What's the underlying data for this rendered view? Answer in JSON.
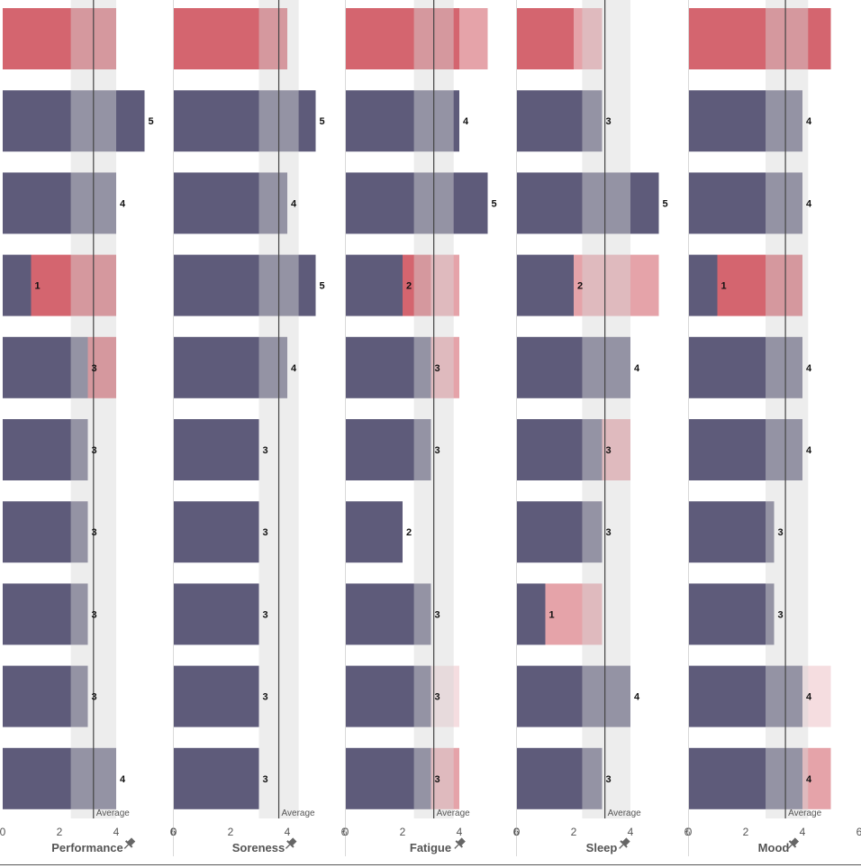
{
  "colors": {
    "bar": "#5e5b7a",
    "alert_strong": "#d4656f",
    "alert_light": "#e5a3a9",
    "alert_faint": "#f5dde0",
    "avg_band": "#d6d6d6",
    "avg_line": "#444444",
    "separator": "#d9d9d9"
  },
  "average_label": "Average",
  "pin_icon": "pin-icon",
  "chart_data": {
    "type": "bar",
    "orientation": "horizontal",
    "xlim": [
      0,
      6
    ],
    "x_ticks": [
      "0",
      "2",
      "4",
      "6"
    ],
    "panels": [
      {
        "name": "Performance",
        "average": 3.2,
        "band": [
          2.4,
          4.0
        ],
        "rows": [
          {
            "value": null,
            "alert_to": 4,
            "alert": "strong"
          },
          {
            "value": 5,
            "label": "5"
          },
          {
            "value": 4,
            "label": "4"
          },
          {
            "value": 1,
            "label": "1",
            "alert_to": 4,
            "alert": "strong"
          },
          {
            "value": 3,
            "label": "3",
            "alert_to": 4,
            "alert": "strong"
          },
          {
            "value": 3,
            "label": "3"
          },
          {
            "value": 3,
            "label": "3"
          },
          {
            "value": 3,
            "label": "3"
          },
          {
            "value": 3,
            "label": "3"
          },
          {
            "value": 4,
            "label": "4"
          }
        ]
      },
      {
        "name": "Soreness",
        "average": 3.7,
        "band": [
          3.0,
          4.4
        ],
        "rows": [
          {
            "value": null,
            "alert_to": 4,
            "alert": "strong"
          },
          {
            "value": 5,
            "label": "5"
          },
          {
            "value": 4,
            "label": "4"
          },
          {
            "value": 5,
            "label": "5"
          },
          {
            "value": 4,
            "label": "4"
          },
          {
            "value": 3,
            "label": "3"
          },
          {
            "value": 3,
            "label": "3"
          },
          {
            "value": 3,
            "label": "3"
          },
          {
            "value": 3,
            "label": "3"
          },
          {
            "value": 3,
            "label": "3"
          }
        ]
      },
      {
        "name": "Fatigue",
        "average": 3.1,
        "band": [
          2.4,
          3.8
        ],
        "rows": [
          {
            "value": null,
            "alert_to": 4,
            "alert": "strong",
            "light_to": 5
          },
          {
            "value": 4,
            "label": "4"
          },
          {
            "value": 5,
            "label": "5"
          },
          {
            "value": 2,
            "label": "2",
            "alert_to": 3,
            "alert": "strong",
            "light_to": 4
          },
          {
            "value": 3,
            "label": "3",
            "alert_to": 4,
            "alert": "light"
          },
          {
            "value": 3,
            "label": "3"
          },
          {
            "value": 2,
            "label": "2"
          },
          {
            "value": 3,
            "label": "3"
          },
          {
            "value": 3,
            "label": "3",
            "alert_to": 4,
            "alert": "faint"
          },
          {
            "value": 3,
            "label": "3",
            "alert_to": 4,
            "alert": "light"
          }
        ]
      },
      {
        "name": "Sleep",
        "average": 3.1,
        "band": [
          2.3,
          4.0
        ],
        "rows": [
          {
            "value": null,
            "alert_to": 2,
            "alert": "strong",
            "light_to": 3
          },
          {
            "value": 3,
            "label": "3"
          },
          {
            "value": 5,
            "label": "5"
          },
          {
            "value": 2,
            "label": "2",
            "alert_to": 5,
            "alert": "light"
          },
          {
            "value": 4,
            "label": "4"
          },
          {
            "value": 3,
            "label": "3",
            "alert_to": 4,
            "alert": "light"
          },
          {
            "value": 3,
            "label": "3"
          },
          {
            "value": 1,
            "label": "1",
            "alert_to": 3,
            "alert": "light"
          },
          {
            "value": 4,
            "label": "4"
          },
          {
            "value": 3,
            "label": "3"
          }
        ]
      },
      {
        "name": "Mood",
        "average": 3.4,
        "band": [
          2.7,
          4.2
        ],
        "rows": [
          {
            "value": null,
            "alert_to": 5,
            "alert": "strong"
          },
          {
            "value": 4,
            "label": "4"
          },
          {
            "value": 4,
            "label": "4"
          },
          {
            "value": 1,
            "label": "1",
            "alert_to": 4,
            "alert": "strong"
          },
          {
            "value": 4,
            "label": "4"
          },
          {
            "value": 4,
            "label": "4"
          },
          {
            "value": 3,
            "label": "3"
          },
          {
            "value": 3,
            "label": "3"
          },
          {
            "value": 4,
            "label": "4",
            "alert_to": 5,
            "alert": "faint"
          },
          {
            "value": 4,
            "label": "4",
            "alert_to": 5,
            "alert": "light"
          }
        ]
      }
    ]
  }
}
